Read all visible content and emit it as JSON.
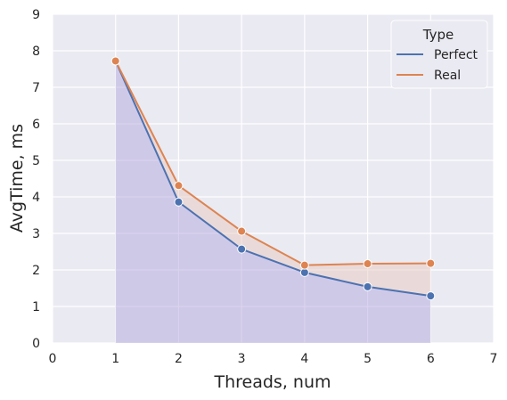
{
  "chart_data": {
    "type": "line",
    "xlabel": "Threads, num",
    "ylabel": "AvgTime, ms",
    "xlim": [
      0,
      7
    ],
    "ylim": [
      0,
      9
    ],
    "x_ticks": [
      "0",
      "1",
      "2",
      "3",
      "4",
      "5",
      "6",
      "7"
    ],
    "y_ticks": [
      "0",
      "1",
      "2",
      "3",
      "4",
      "5",
      "6",
      "7",
      "8",
      "9"
    ],
    "grid": true,
    "legend": {
      "title": "Type",
      "placement": "top-right"
    },
    "x": [
      1,
      2,
      3,
      4,
      5,
      6
    ],
    "series": [
      {
        "name": "Perfect",
        "values": [
          7.72,
          3.86,
          2.57,
          1.93,
          1.54,
          1.29
        ],
        "color": "#4c72b0",
        "fill": "#b4a7dd"
      },
      {
        "name": "Real",
        "values": [
          7.72,
          4.31,
          3.06,
          2.13,
          2.17,
          2.18
        ],
        "color": "#dd8452",
        "fill": "#e8c9c0"
      }
    ]
  },
  "colors": {
    "plot_background": "#eaeaf2",
    "grid": "#ffffff"
  }
}
